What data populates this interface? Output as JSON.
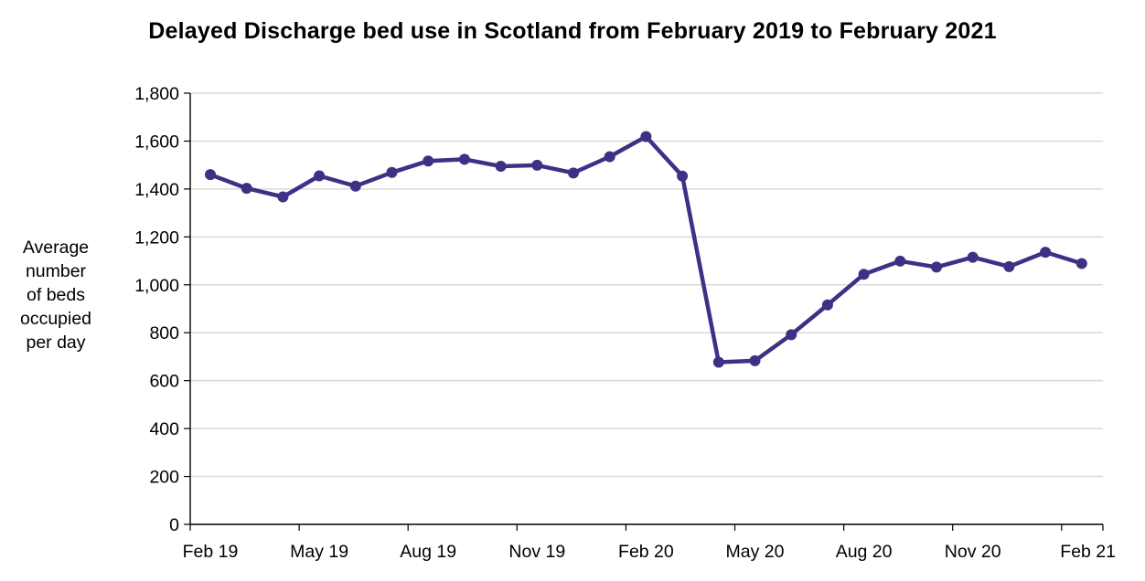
{
  "chart_data": {
    "type": "line",
    "title": "Delayed Discharge bed use in Scotland from February 2019 to February 2021",
    "ylabel_lines": [
      "Average",
      "number",
      "of beds",
      "occupied",
      "per day"
    ],
    "xlabel": "",
    "ylim": [
      0,
      1800
    ],
    "y_ticks": [
      0,
      200,
      400,
      600,
      800,
      1000,
      1200,
      1400,
      1600,
      1800
    ],
    "y_tick_labels": [
      "0",
      "200",
      "400",
      "600",
      "800",
      "1,000",
      "1,200",
      "1,400",
      "1,600",
      "1,800"
    ],
    "x_tick_labels": [
      "Feb 19",
      "May 19",
      "Aug 19",
      "Nov 19",
      "Feb 20",
      "May 20",
      "Aug 20",
      "Nov 20",
      "Feb 21"
    ],
    "grid": true,
    "legend": "none",
    "line_color": "#3d3185",
    "categories": [
      "Feb 19",
      "Mar 19",
      "Apr 19",
      "May 19",
      "Jun 19",
      "Jul 19",
      "Aug 19",
      "Sep 19",
      "Oct 19",
      "Nov 19",
      "Dec 19",
      "Jan 20",
      "Feb 20",
      "Mar 20",
      "Apr 20",
      "May 20",
      "Jun 20",
      "Jul 20",
      "Aug 20",
      "Sep 20",
      "Oct 20",
      "Nov 20",
      "Dec 20",
      "Jan 21",
      "Feb 21"
    ],
    "values": [
      1460,
      1403,
      1367,
      1455,
      1412,
      1469,
      1517,
      1524,
      1495,
      1499,
      1467,
      1535,
      1619,
      1454,
      677,
      683,
      792,
      916,
      1044,
      1099,
      1074,
      1115,
      1076,
      1136,
      1089
    ]
  }
}
